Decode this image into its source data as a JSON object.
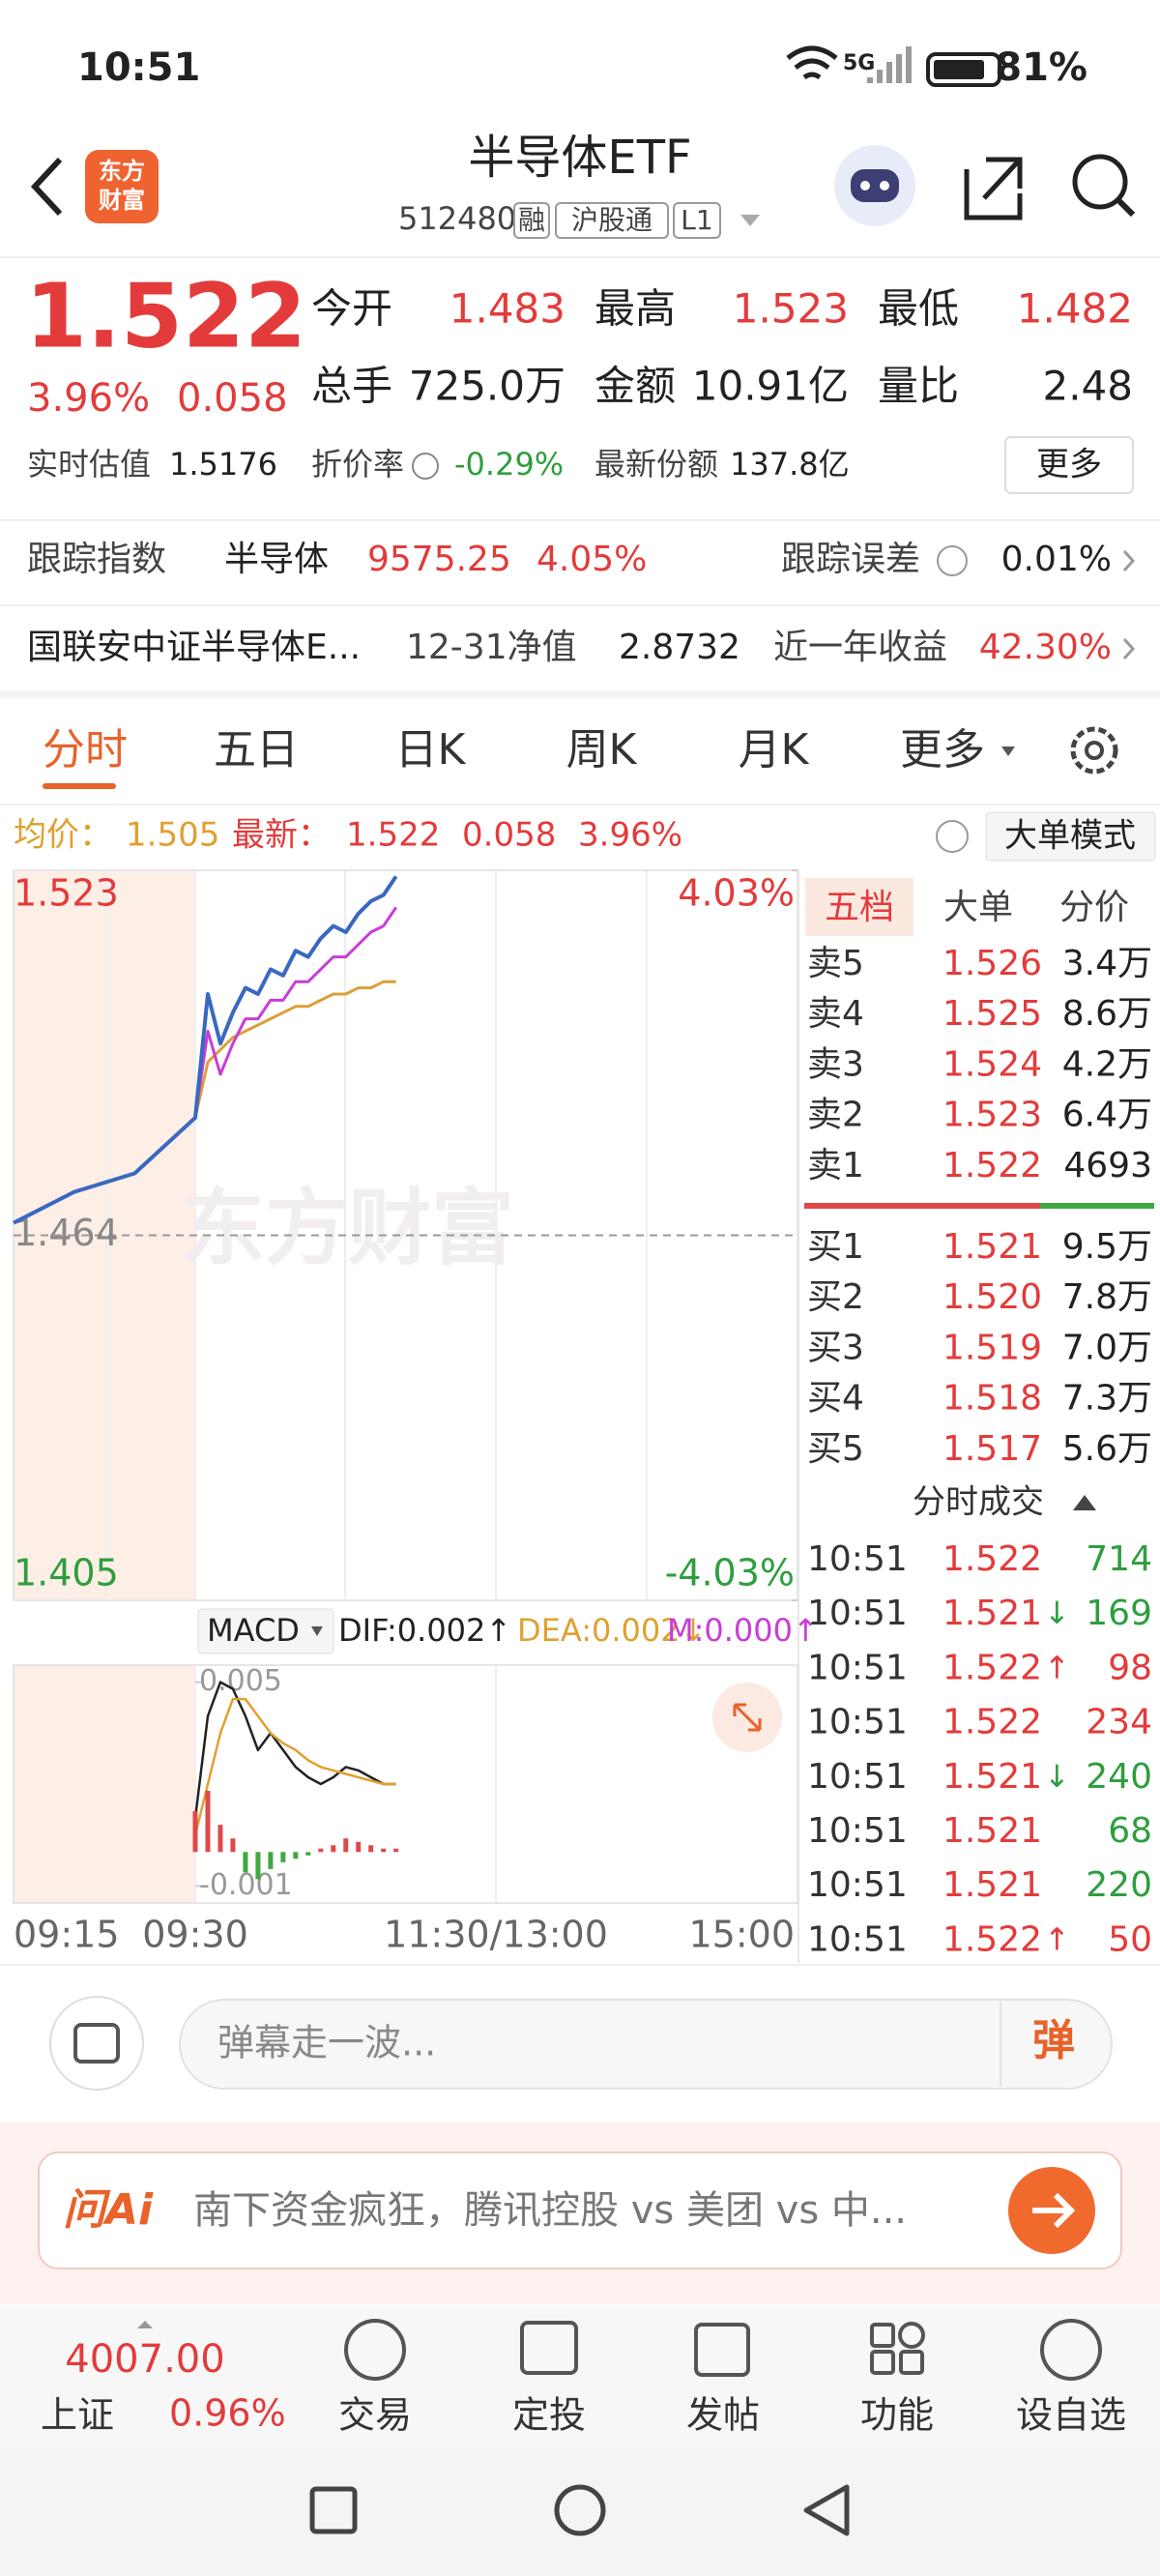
{
  "status": {
    "time": "10:51",
    "network": "5G",
    "battery": "81%"
  },
  "header": {
    "logo": [
      "东方",
      "财富"
    ],
    "title": "半导体ETF",
    "code": "512480",
    "tags": [
      "融",
      "沪股通",
      "L1"
    ]
  },
  "quote": {
    "price": "1.522",
    "change_pct": "3.96%",
    "change": "0.058",
    "stats": [
      [
        {
          "label": "今开",
          "value": "1.483"
        },
        {
          "label": "最高",
          "value": "1.523"
        },
        {
          "label": "最低",
          "value": "1.482"
        }
      ],
      [
        {
          "label": "总手",
          "value": "725.0万"
        },
        {
          "label": "金额",
          "value": "10.91亿"
        },
        {
          "label": "量比",
          "value": "2.48"
        }
      ]
    ],
    "estimate_label": "实时估值",
    "estimate": "1.5176",
    "discount_label": "折价率",
    "discount": "-0.29%",
    "shares_label": "最新份额",
    "shares": "137.8亿",
    "more": "更多"
  },
  "tracking": {
    "label": "跟踪指数",
    "index": "半导体",
    "index_value": "9575.25",
    "index_change": "4.05%",
    "error_label": "跟踪误差",
    "error": "0.01%"
  },
  "fund": {
    "name": "国联安中证半导体E...",
    "nav_label": "12-31净值",
    "nav": "2.8732",
    "return_label": "近一年收益",
    "return": "42.30%"
  },
  "tabs": [
    "分时",
    "五日",
    "日K",
    "周K",
    "月K",
    "更多"
  ],
  "info": {
    "avg_label": "均价：",
    "avg": "1.505",
    "last_label": "最新：",
    "last": "1.522",
    "change": "0.058",
    "change_pct": "3.96%",
    "mode": "大单模式"
  },
  "chart_data": [
    {
      "type": "line",
      "watermark": "东方财富",
      "ylim": [
        1.405,
        1.523
      ],
      "yticks": [
        1.523,
        1.464,
        1.405
      ],
      "y2lim": [
        -4.03,
        4.03
      ],
      "y2ticks": [
        {
          "value": 4.03,
          "label": "4.03%"
        },
        {
          "value": -4.03,
          "label": "-4.03%"
        }
      ],
      "time_labels": [
        "09:15",
        "09:30",
        "11:30/13:00",
        "15:00"
      ],
      "series": [
        {
          "color": "#3a68c0",
          "values": [
            1.466,
            1.471,
            1.474,
            1.483,
            1.503,
            1.495,
            1.5,
            1.504,
            1.503,
            1.507,
            1.506,
            1.51,
            1.509,
            1.512,
            1.514,
            1.513,
            1.516,
            1.518,
            1.519,
            1.522
          ]
        },
        {
          "color": "#c93dd6",
          "values": [
            null,
            null,
            null,
            1.483,
            1.497,
            1.49,
            1.495,
            1.499,
            1.499,
            1.502,
            1.502,
            1.505,
            1.505,
            1.507,
            1.509,
            1.509,
            1.511,
            1.513,
            1.514,
            1.517
          ]
        },
        {
          "color": "#dba038",
          "values": [
            null,
            null,
            null,
            1.483,
            1.492,
            1.494,
            1.496,
            1.497,
            1.498,
            1.499,
            1.5,
            1.501,
            1.501,
            1.502,
            1.503,
            1.503,
            1.504,
            1.504,
            1.505,
            1.505
          ]
        }
      ]
    },
    {
      "type": "macd",
      "title": "MACD",
      "dif_label": "DIF:0.002↑",
      "dea_label": "DEA:0.002↓",
      "m_label": "M:0.000↑",
      "ylim": [
        -0.0015,
        0.0055
      ],
      "yticks": [
        0.005,
        -0.001
      ],
      "up_color": "#e04848",
      "down_color": "#3fa83f",
      "series": [
        {
          "type": "line",
          "color": "#222222",
          "values": [
            null,
            null,
            null,
            0.001,
            0.004,
            0.005,
            0.0048,
            0.004,
            0.003,
            0.0035,
            0.003,
            0.0025,
            0.0022,
            0.002,
            0.0022,
            0.0025,
            0.0024,
            0.0022,
            0.002,
            0.002
          ]
        },
        {
          "type": "line",
          "color": "#e0a030",
          "values": [
            null,
            null,
            null,
            0.0005,
            0.002,
            0.0035,
            0.0045,
            0.0045,
            0.004,
            0.0035,
            0.0032,
            0.003,
            0.0027,
            0.0025,
            0.0024,
            0.0023,
            0.0022,
            0.0021,
            0.002,
            0.002
          ]
        },
        {
          "type": "bar",
          "values": [
            null,
            null,
            null,
            0.0012,
            0.0018,
            0.0008,
            0.0004,
            -0.0006,
            -0.0008,
            -0.0005,
            -0.0003,
            -0.0002,
            -0.0001,
            0.0001,
            0.0002,
            0.0004,
            0.0003,
            0.0002,
            0.0001,
            0.0001
          ]
        }
      ]
    }
  ],
  "order_book": {
    "tabs": [
      "五档",
      "大单",
      "分价"
    ],
    "sell": [
      {
        "label": "卖5",
        "price": "1.526",
        "volume": "3.4万"
      },
      {
        "label": "卖4",
        "price": "1.525",
        "volume": "8.6万"
      },
      {
        "label": "卖3",
        "price": "1.524",
        "volume": "4.2万"
      },
      {
        "label": "卖2",
        "price": "1.523",
        "volume": "6.4万"
      },
      {
        "label": "卖1",
        "price": "1.522",
        "volume": "4693"
      }
    ],
    "buy": [
      {
        "label": "买1",
        "price": "1.521",
        "volume": "9.5万"
      },
      {
        "label": "买2",
        "price": "1.520",
        "volume": "7.8万"
      },
      {
        "label": "买3",
        "price": "1.519",
        "volume": "7.0万"
      },
      {
        "label": "买4",
        "price": "1.518",
        "volume": "7.3万"
      },
      {
        "label": "买5",
        "price": "1.517",
        "volume": "5.6万"
      }
    ]
  },
  "trades": {
    "title": "分时成交",
    "rows": [
      {
        "time": "10:51",
        "price": "1.522",
        "volume": "714",
        "color": "#2e9e3e"
      },
      {
        "time": "10:51",
        "price": "1.521",
        "arrow": "↓",
        "volume": "169",
        "color": "#2e9e3e"
      },
      {
        "time": "10:51",
        "price": "1.522",
        "arrow": "↑",
        "volume": "98",
        "color": "#e33b3b"
      },
      {
        "time": "10:51",
        "price": "1.522",
        "volume": "234",
        "color": "#e33b3b"
      },
      {
        "time": "10:51",
        "price": "1.521",
        "arrow": "↓",
        "volume": "240",
        "color": "#2e9e3e"
      },
      {
        "time": "10:51",
        "price": "1.521",
        "volume": "68",
        "color": "#2e9e3e"
      },
      {
        "time": "10:51",
        "price": "1.521",
        "volume": "220",
        "color": "#2e9e3e"
      },
      {
        "time": "10:51",
        "price": "1.522",
        "arrow": "↑",
        "volume": "50",
        "color": "#e33b3b"
      }
    ]
  },
  "comment": {
    "placeholder": "弹幕走一波...",
    "button": "弹"
  },
  "ai": {
    "logo": "问Ai",
    "text": "南下资金疯狂，腾讯控股 vs 美团 vs 中..."
  },
  "nav": {
    "index_value": "4007.00",
    "index_name": "上证",
    "index_change": "0.96%",
    "items": [
      "交易",
      "定投",
      "发帖",
      "功能",
      "设自选"
    ]
  }
}
